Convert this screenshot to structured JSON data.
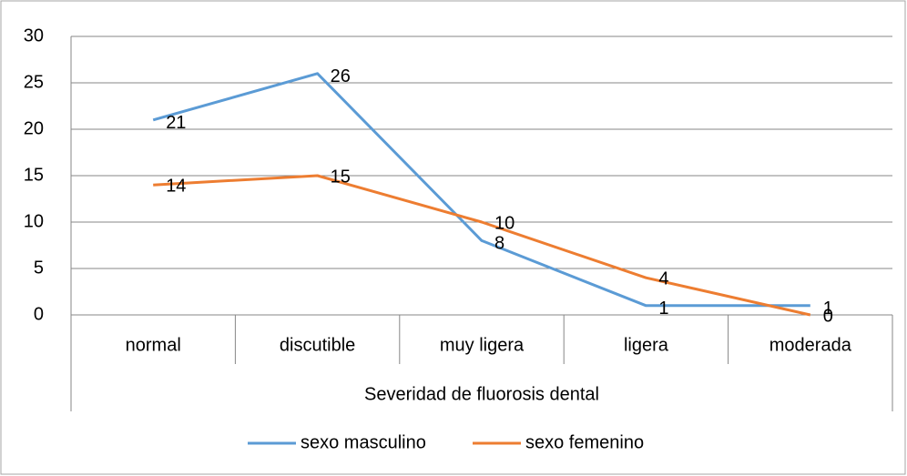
{
  "chart_data": {
    "type": "line",
    "x_label": "Severidad de fluorosis dental",
    "categories": [
      "normal",
      "discutible",
      "muy ligera",
      "ligera",
      "moderada"
    ],
    "series": [
      {
        "name": "sexo masculino",
        "color": "#5b9bd5",
        "values": [
          21,
          26,
          8,
          1,
          1
        ]
      },
      {
        "name": "sexo femenino",
        "color": "#ed7d31",
        "values": [
          14,
          15,
          10,
          4,
          0
        ]
      }
    ],
    "ylim": [
      0,
      30
    ],
    "yticks": [
      0,
      5,
      10,
      15,
      20,
      25,
      30
    ],
    "grid": true,
    "legend": "bottom"
  }
}
